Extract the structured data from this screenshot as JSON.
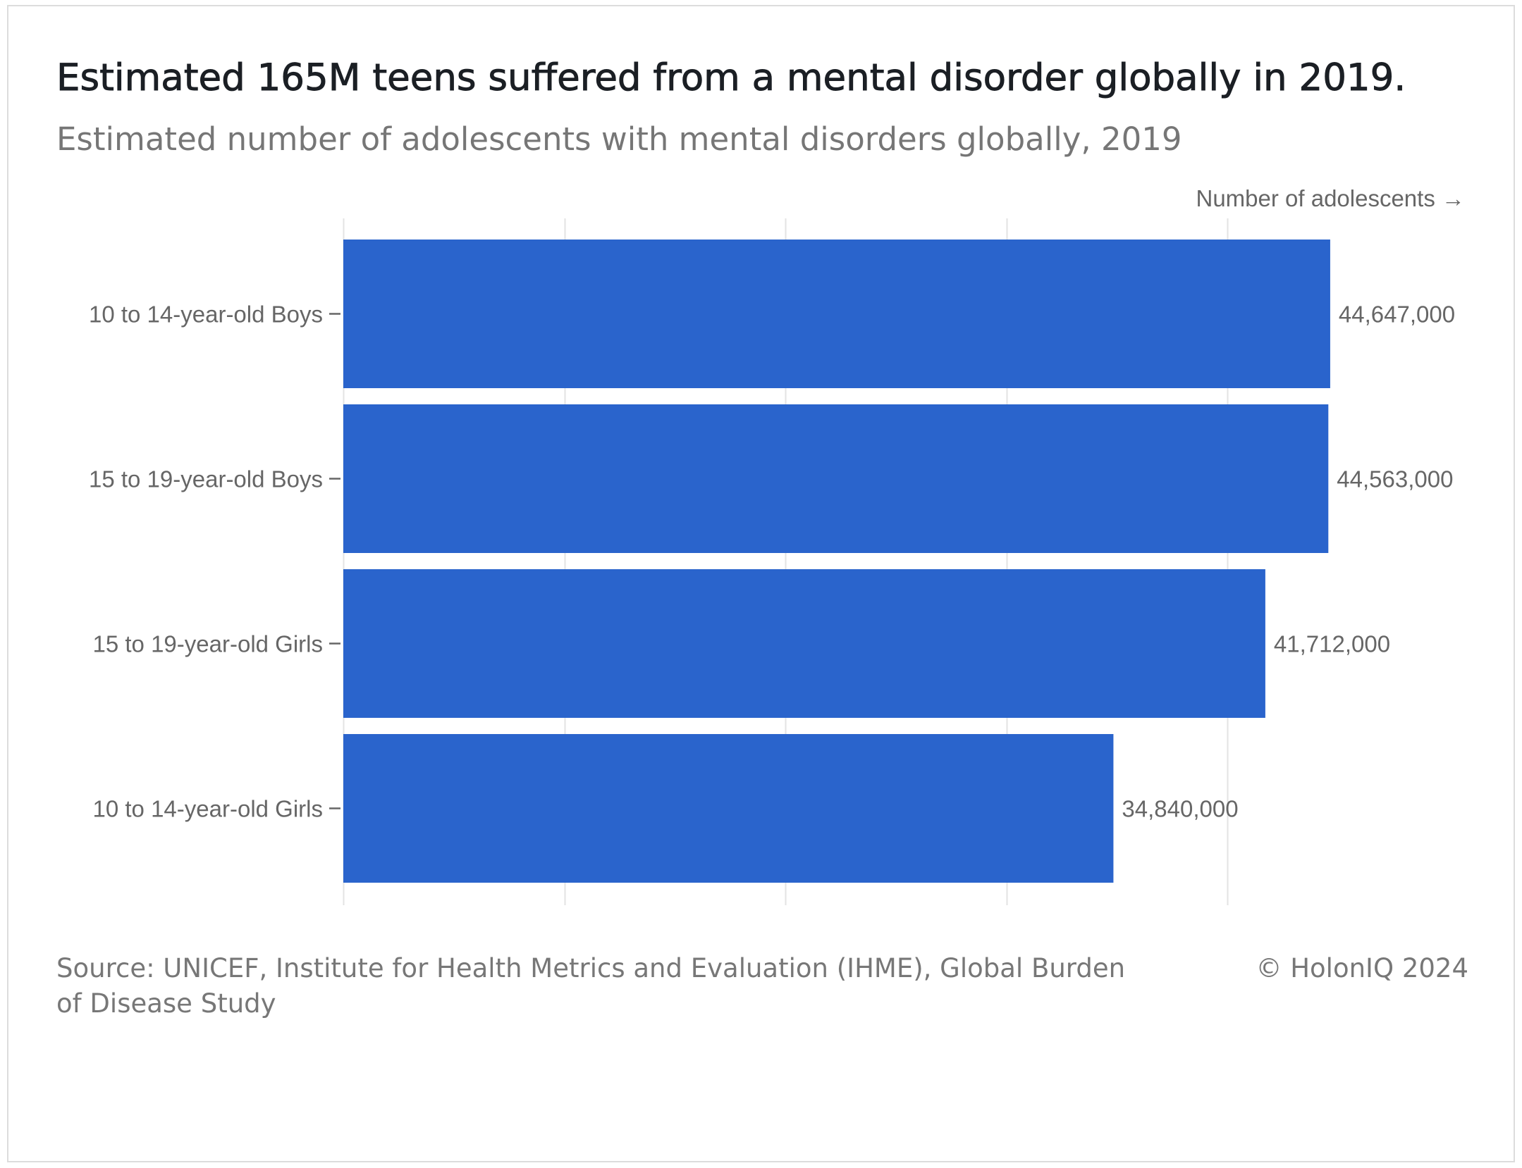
{
  "header": {
    "title": "Estimated 165M teens suffered from a mental disorder globally in 2019.",
    "subtitle": "Estimated number of adolescents with mental disorders globally, 2019"
  },
  "footer": {
    "source": "Source: UNICEF, Institute for Health Metrics and Evaluation (IHME), Global Burden of Disease Study",
    "copyright": "© HolonIQ 2024"
  },
  "colors": {
    "bar": "#2a64cc",
    "grid": "#e3e3e3",
    "label": "#666666"
  },
  "chart_data": {
    "type": "bar",
    "orientation": "horizontal",
    "title": "Estimated 165M teens suffered from a mental disorder globally in 2019.",
    "subtitle": "Estimated number of adolescents with mental disorders globally, 2019",
    "xlabel": "Number of adolescents →",
    "ylabel": "",
    "categories": [
      "10 to 14-year-old Boys",
      "15 to 19-year-old Boys",
      "15 to 19-year-old Girls",
      "10 to 14-year-old Girls"
    ],
    "values": [
      44647000,
      44563000,
      41712000,
      34840000
    ],
    "value_labels": [
      "44,647,000",
      "44,563,000",
      "41,712,000",
      "34,840,000"
    ],
    "xlim": [
      0,
      45000000
    ],
    "gridlines": [
      0,
      10000000,
      20000000,
      30000000,
      40000000
    ],
    "grid": true,
    "legend": "none"
  }
}
